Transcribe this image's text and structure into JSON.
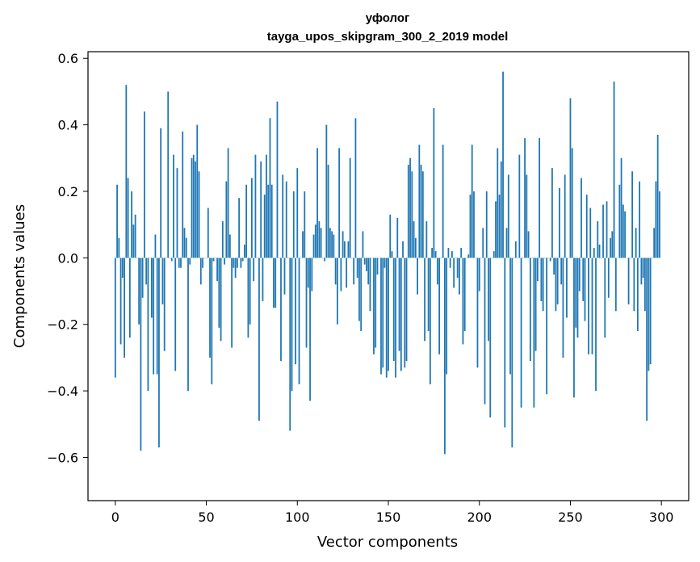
{
  "chart_data": {
    "type": "bar",
    "title": [
      "уфолог",
      "tayga_upos_skipgram_300_2_2019 model"
    ],
    "xlabel": "Vector components",
    "ylabel": "Components values",
    "xlim": [
      -15,
      315
    ],
    "ylim": [
      -0.73,
      0.62
    ],
    "x_ticks": [
      0,
      50,
      100,
      150,
      200,
      250,
      300
    ],
    "x_tick_labels": [
      "0",
      "50",
      "100",
      "150",
      "200",
      "250",
      "300"
    ],
    "y_ticks": [
      -0.6,
      -0.4,
      -0.2,
      0.0,
      0.2,
      0.4,
      0.6
    ],
    "y_tick_labels": [
      "−0.6",
      "−0.4",
      "−0.2",
      "0.0",
      "0.2",
      "0.4",
      "0.6"
    ],
    "grid": false,
    "bar_color": "#1f77b4",
    "x": [
      0,
      1,
      2,
      3,
      4,
      5,
      6,
      7,
      8,
      9,
      10,
      11,
      12,
      13,
      14,
      15,
      16,
      17,
      18,
      19,
      20,
      21,
      22,
      23,
      24,
      25,
      26,
      27,
      28,
      29,
      30,
      31,
      32,
      33,
      34,
      35,
      36,
      37,
      38,
      39,
      40,
      41,
      42,
      43,
      44,
      45,
      46,
      47,
      48,
      49,
      50,
      51,
      52,
      53,
      54,
      55,
      56,
      57,
      58,
      59,
      60,
      61,
      62,
      63,
      64,
      65,
      66,
      67,
      68,
      69,
      70,
      71,
      72,
      73,
      74,
      75,
      76,
      77,
      78,
      79,
      80,
      81,
      82,
      83,
      84,
      85,
      86,
      87,
      88,
      89,
      90,
      91,
      92,
      93,
      94,
      95,
      96,
      97,
      98,
      99,
      100,
      101,
      102,
      103,
      104,
      105,
      106,
      107,
      108,
      109,
      110,
      111,
      112,
      113,
      114,
      115,
      116,
      117,
      118,
      119,
      120,
      121,
      122,
      123,
      124,
      125,
      126,
      127,
      128,
      129,
      130,
      131,
      132,
      133,
      134,
      135,
      136,
      137,
      138,
      139,
      140,
      141,
      142,
      143,
      144,
      145,
      146,
      147,
      148,
      149,
      150,
      151,
      152,
      153,
      154,
      155,
      156,
      157,
      158,
      159,
      160,
      161,
      162,
      163,
      164,
      165,
      166,
      167,
      168,
      169,
      170,
      171,
      172,
      173,
      174,
      175,
      176,
      177,
      178,
      179,
      180,
      181,
      182,
      183,
      184,
      185,
      186,
      187,
      188,
      189,
      190,
      191,
      192,
      193,
      194,
      195,
      196,
      197,
      198,
      199,
      200,
      201,
      202,
      203,
      204,
      205,
      206,
      207,
      208,
      209,
      210,
      211,
      212,
      213,
      214,
      215,
      216,
      217,
      218,
      219,
      220,
      221,
      222,
      223,
      224,
      225,
      226,
      227,
      228,
      229,
      230,
      231,
      232,
      233,
      234,
      235,
      236,
      237,
      238,
      239,
      240,
      241,
      242,
      243,
      244,
      245,
      246,
      247,
      248,
      249,
      250,
      251,
      252,
      253,
      254,
      255,
      256,
      257,
      258,
      259,
      260,
      261,
      262,
      263,
      264,
      265,
      266,
      267,
      268,
      269,
      270,
      271,
      272,
      273,
      274,
      275,
      276,
      277,
      278,
      279,
      280,
      281,
      282,
      283,
      284,
      285,
      286,
      287,
      288,
      289,
      290,
      291,
      292,
      293,
      294,
      295,
      296,
      297,
      298,
      299
    ],
    "values": [
      -0.36,
      0.22,
      0.06,
      -0.26,
      -0.06,
      -0.3,
      0.52,
      0.24,
      -0.24,
      0.2,
      0.1,
      0.13,
      0.0,
      -0.2,
      -0.58,
      -0.12,
      0.44,
      -0.08,
      -0.4,
      0.0,
      -0.18,
      -0.35,
      0.07,
      -0.35,
      -0.57,
      0.39,
      -0.14,
      -0.28,
      0.0,
      0.5,
      0.0,
      -0.01,
      0.31,
      -0.34,
      0.27,
      -0.03,
      -0.03,
      0.38,
      0.09,
      0.06,
      -0.4,
      -0.02,
      0.3,
      0.31,
      0.29,
      0.4,
      0.26,
      -0.08,
      -0.03,
      0.0,
      0.0,
      0.15,
      -0.3,
      -0.38,
      -0.01,
      0.0,
      -0.07,
      -0.21,
      -0.25,
      0.11,
      -0.02,
      0.23,
      0.33,
      0.07,
      -0.27,
      -0.03,
      -0.06,
      -0.03,
      0.18,
      -0.03,
      -0.01,
      0.04,
      0.22,
      -0.24,
      -0.2,
      0.24,
      -0.07,
      0.31,
      0.0,
      -0.49,
      0.29,
      -0.13,
      0.19,
      0.31,
      0.22,
      0.42,
      0.22,
      -0.15,
      -0.15,
      0.47,
      0.0,
      -0.31,
      0.25,
      -0.11,
      0.23,
      0.0,
      -0.52,
      -0.4,
      0.2,
      -0.32,
      0.27,
      -0.38,
      0.0,
      0.08,
      0.2,
      -0.27,
      -0.09,
      -0.43,
      -0.1,
      0.07,
      0.1,
      0.33,
      0.11,
      0.09,
      0.0,
      -0.01,
      0.4,
      0.28,
      0.09,
      0.08,
      0.07,
      -0.08,
      -0.2,
      0.33,
      -0.1,
      0.08,
      0.05,
      -0.09,
      0.05,
      0.3,
      0.0,
      -0.08,
      0.42,
      -0.06,
      -0.19,
      -0.22,
      0.08,
      -0.02,
      -0.04,
      -0.08,
      -0.16,
      0.0,
      -0.29,
      -0.27,
      -0.05,
      0.0,
      -0.35,
      -0.33,
      -0.03,
      -0.36,
      -0.34,
      0.13,
      0.02,
      -0.31,
      -0.36,
      0.12,
      -0.28,
      -0.34,
      0.05,
      -0.33,
      -0.31,
      0.28,
      0.3,
      0.26,
      0.11,
      0.06,
      -0.11,
      0.34,
      0.28,
      0.26,
      -0.25,
      0.11,
      -0.22,
      -0.38,
      0.03,
      0.45,
      0.02,
      -0.08,
      -0.29,
      0.0,
      0.34,
      -0.59,
      -0.35,
      0.03,
      -0.03,
      0.02,
      -0.09,
      0.0,
      -0.06,
      -0.11,
      0.03,
      -0.26,
      -0.22,
      0.0,
      0.01,
      0.19,
      0.34,
      0.2,
      0.0,
      -0.33,
      -0.1,
      0.0,
      0.09,
      -0.44,
      0.2,
      -0.25,
      -0.48,
      0.0,
      0.02,
      0.17,
      0.33,
      0.19,
      0.29,
      0.56,
      -0.51,
      0.09,
      0.25,
      -0.35,
      -0.57,
      0.0,
      0.05,
      0.0,
      0.31,
      -0.45,
      0.0,
      0.36,
      0.25,
      0.08,
      -0.31,
      0.0,
      -0.45,
      -0.28,
      -0.07,
      0.36,
      -0.13,
      -0.16,
      0.0,
      -0.41,
      0.0,
      -0.01,
      0.27,
      -0.05,
      -0.16,
      -0.14,
      0.21,
      -0.08,
      -0.3,
      0.25,
      -0.18,
      0.0,
      0.48,
      0.33,
      -0.42,
      -0.21,
      -0.24,
      -0.1,
      0.24,
      -0.13,
      -0.19,
      0.19,
      -0.29,
      0.15,
      -0.29,
      0.03,
      -0.4,
      0.11,
      0.04,
      0.0,
      0.16,
      -0.24,
      0.17,
      -0.12,
      0.06,
      0.08,
      0.53,
      -0.16,
      0.0,
      0.22,
      0.3,
      0.16,
      0.14,
      0.0,
      -0.14,
      0.0,
      0.26,
      -0.16,
      0.09,
      -0.22,
      0.23,
      -0.08,
      -0.06,
      -0.16,
      -0.49,
      -0.34,
      -0.32,
      0.0,
      0.09,
      0.23,
      0.37,
      0.2
    ]
  }
}
